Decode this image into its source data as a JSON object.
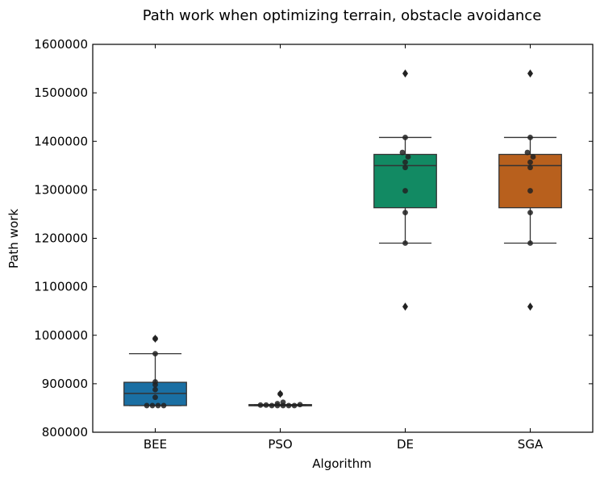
{
  "chart_data": {
    "type": "box",
    "title": "Path work when optimizing terrain, obstacle avoidance",
    "xlabel": "Algorithm",
    "ylabel": "Path work",
    "ylim": [
      800000,
      1600000
    ],
    "yticks": [
      800000,
      900000,
      1000000,
      1100000,
      1200000,
      1300000,
      1400000,
      1500000,
      1600000
    ],
    "categories": [
      "BEE",
      "PSO",
      "DE",
      "SGA"
    ],
    "boxes": [
      {
        "name": "BEE",
        "color": "#1a6fa3",
        "q1": 855000,
        "median": 880000,
        "q3": 903000,
        "whisker_low": 855000,
        "whisker_high": 962000,
        "outliers": [
          993000
        ],
        "points": [
          855000,
          855000,
          855000,
          855000,
          872000,
          888000,
          898000,
          904000,
          962000,
          993000
        ]
      },
      {
        "name": "PSO",
        "color": "#1a6fa3",
        "q1": 855000,
        "median": 856000,
        "q3": 857000,
        "whisker_low": 855000,
        "whisker_high": 857000,
        "outliers": [
          879000
        ],
        "points": [
          856000,
          856000,
          855000,
          855000,
          855000,
          855000,
          855000,
          857000,
          859000,
          862000,
          879000
        ]
      },
      {
        "name": "DE",
        "color": "#128a63",
        "q1": 1263000,
        "median": 1350000,
        "q3": 1373000,
        "whisker_low": 1190000,
        "whisker_high": 1408000,
        "outliers": [
          1540000,
          1059000
        ],
        "points": [
          1408000,
          1377000,
          1368000,
          1357000,
          1346000,
          1298000,
          1253000,
          1190000
        ]
      },
      {
        "name": "SGA",
        "color": "#b8601d",
        "q1": 1263000,
        "median": 1350000,
        "q3": 1373000,
        "whisker_low": 1190000,
        "whisker_high": 1408000,
        "outliers": [
          1540000,
          1059000
        ],
        "points": [
          1408000,
          1377000,
          1368000,
          1357000,
          1346000,
          1298000,
          1253000,
          1190000
        ]
      }
    ],
    "grid": false,
    "legend": "none"
  }
}
